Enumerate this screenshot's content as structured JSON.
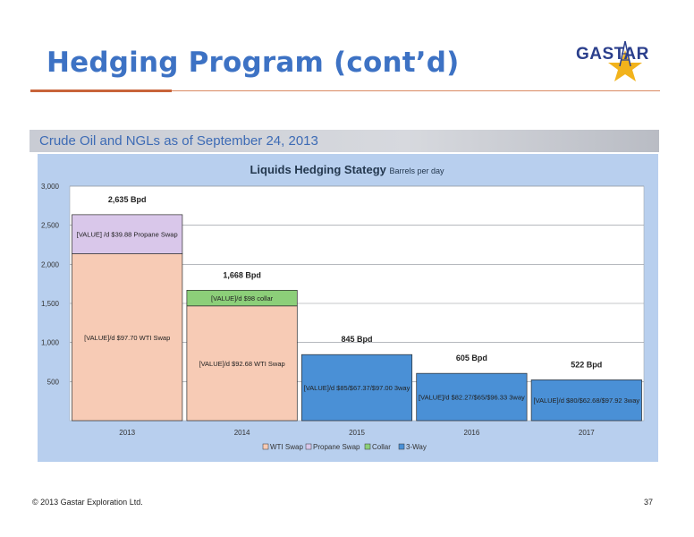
{
  "slide": {
    "title": "Hedging Program (cont’d)",
    "section_title": "Crude Oil and NGLs as of September 24, 2013",
    "footer_copyright": "© 2013 Gastar Exploration Ltd.",
    "page_number": "37"
  },
  "logo": {
    "text": "GASTAR",
    "icon": "derrick-star-icon"
  },
  "colors": {
    "title": "#3d72c4",
    "wti_swap": "#f7cbb5",
    "propane_swap": "#d9c7ea",
    "collar": "#8ccf79",
    "three_way": "#4a90d6",
    "panel": "#b8cfee"
  },
  "chart_data": {
    "type": "bar",
    "stacked": true,
    "title": "Liquids Hedging Stategy",
    "subtitle": "Barrels per day",
    "categories": [
      "2013",
      "2014",
      "2015",
      "2016",
      "2017"
    ],
    "ylim": [
      0,
      3000
    ],
    "yticks": [
      "3,000",
      "2,500",
      "2,000",
      "1,500",
      "1,000",
      "500"
    ],
    "ytick_values": [
      3000,
      2500,
      2000,
      1500,
      1000,
      500
    ],
    "grid": true,
    "legend_position": "bottom",
    "series": [
      {
        "name": "WTI Swap",
        "color": "#f7cbb5",
        "values": [
          2135,
          1468,
          0,
          0,
          0
        ],
        "labels": [
          "[VALUE]/d $97.70 WTI Swap",
          "[VALUE]/d $92.68 WTI Swap",
          "",
          "",
          ""
        ]
      },
      {
        "name": "Propane Swap",
        "color": "#d9c7ea",
        "values": [
          500,
          0,
          0,
          0,
          0
        ],
        "labels": [
          "[VALUE] /d $39.88 Propane Swap",
          "",
          "",
          "",
          ""
        ]
      },
      {
        "name": "Collar",
        "color": "#8ccf79",
        "values": [
          0,
          200,
          0,
          0,
          0
        ],
        "labels": [
          "",
          "[VALUE]/d $98 collar",
          "",
          "",
          ""
        ]
      },
      {
        "name": "3-Way",
        "color": "#4a90d6",
        "values": [
          0,
          0,
          845,
          605,
          522
        ],
        "labels": [
          "",
          "",
          "[VALUE]/d $85/$67.37/$97.00 3way",
          "[VALUE]/d $82.27/$65/$96.33 3way",
          "[VALUE]/d $80/$62.68/$97.92 3way"
        ]
      }
    ],
    "totals": [
      2635,
      1668,
      845,
      605,
      522
    ],
    "total_labels": [
      "2,635 Bpd",
      "1,668 Bpd",
      "845 Bpd",
      "605 Bpd",
      "522 Bpd"
    ]
  }
}
